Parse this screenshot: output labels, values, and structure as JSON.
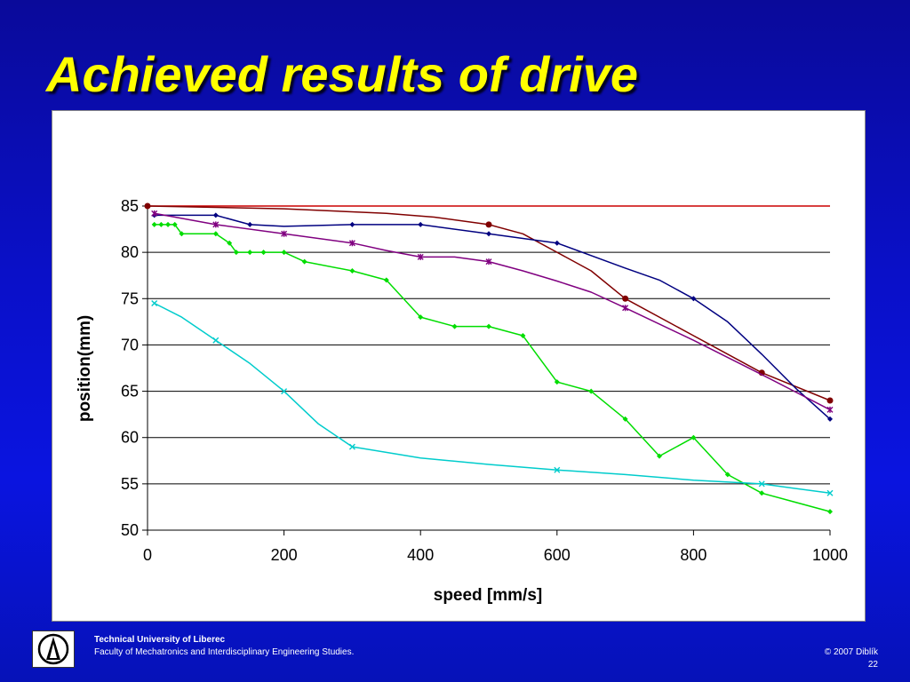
{
  "slide": {
    "title": "Achieved results of drive"
  },
  "footer": {
    "university": "Technical University of Liberec",
    "faculty": "Faculty of Mechatronics and Interdisciplinary Engineering Studies.",
    "copyright": "© 2007 Diblík",
    "page_number": "22",
    "logo_icon": "university-logo-icon"
  },
  "chart_data": {
    "type": "line",
    "title": "",
    "xlabel": "speed [mm/s]",
    "ylabel": "position(mm)",
    "xlim": [
      0,
      1000
    ],
    "ylim": [
      50,
      85
    ],
    "x_ticks": [
      0,
      200,
      400,
      600,
      800,
      1000
    ],
    "y_ticks": [
      50,
      55,
      60,
      65,
      70,
      75,
      80,
      85
    ],
    "grid": "horizontal",
    "legend": "none",
    "series": [
      {
        "color": "#cc0000",
        "marker": "none",
        "points": [
          [
            0,
            85
          ],
          [
            1000,
            85
          ]
        ]
      },
      {
        "color": "#800000",
        "marker": "circle",
        "points": [
          [
            0,
            85
          ],
          [
            200,
            84.7
          ],
          [
            350,
            84.2
          ],
          [
            420,
            83.8
          ],
          [
            500,
            83
          ],
          [
            550,
            82
          ],
          [
            600,
            80
          ],
          [
            650,
            78
          ],
          [
            700,
            75
          ],
          [
            800,
            71
          ],
          [
            900,
            67
          ],
          [
            1000,
            64
          ]
        ],
        "marker_x": [
          0,
          500,
          700,
          900,
          1000
        ]
      },
      {
        "color": "#000080",
        "marker": "diamond",
        "points": [
          [
            10,
            84
          ],
          [
            50,
            84
          ],
          [
            100,
            84
          ],
          [
            150,
            83
          ],
          [
            200,
            82.8
          ],
          [
            300,
            83
          ],
          [
            350,
            83
          ],
          [
            400,
            83
          ],
          [
            500,
            82
          ],
          [
            600,
            81
          ],
          [
            700,
            78.3
          ],
          [
            750,
            77
          ],
          [
            800,
            75
          ],
          [
            850,
            72.5
          ],
          [
            900,
            69
          ],
          [
            950,
            65.3
          ],
          [
            1000,
            62
          ]
        ],
        "marker_x": [
          10,
          100,
          150,
          300,
          400,
          500,
          600,
          800,
          1000
        ]
      },
      {
        "color": "#800080",
        "marker": "asterisk",
        "points": [
          [
            10,
            84.2
          ],
          [
            100,
            83
          ],
          [
            200,
            82
          ],
          [
            300,
            81
          ],
          [
            350,
            80.2
          ],
          [
            400,
            79.5
          ],
          [
            450,
            79.5
          ],
          [
            500,
            79
          ],
          [
            550,
            78
          ],
          [
            600,
            76.9
          ],
          [
            650,
            75.7
          ],
          [
            700,
            74
          ],
          [
            800,
            70.5
          ],
          [
            900,
            66.8
          ],
          [
            1000,
            63
          ]
        ],
        "marker_x": [
          10,
          100,
          200,
          300,
          400,
          500,
          700,
          1000
        ]
      },
      {
        "color": "#00dd00",
        "marker": "diamond",
        "points": [
          [
            10,
            83
          ],
          [
            20,
            83
          ],
          [
            30,
            83
          ],
          [
            40,
            83
          ],
          [
            50,
            82
          ],
          [
            100,
            82
          ],
          [
            120,
            81
          ],
          [
            130,
            80
          ],
          [
            150,
            80
          ],
          [
            170,
            80
          ],
          [
            200,
            80
          ],
          [
            230,
            79
          ],
          [
            300,
            78
          ],
          [
            350,
            77
          ],
          [
            400,
            73
          ],
          [
            450,
            72
          ],
          [
            500,
            72
          ],
          [
            550,
            71
          ],
          [
            600,
            66
          ],
          [
            650,
            65
          ],
          [
            700,
            62
          ],
          [
            750,
            58
          ],
          [
            800,
            60
          ],
          [
            850,
            56
          ],
          [
            900,
            54
          ],
          [
            1000,
            52
          ]
        ],
        "marker_x": [
          10,
          20,
          30,
          40,
          50,
          100,
          120,
          130,
          150,
          170,
          200,
          230,
          300,
          350,
          400,
          450,
          500,
          550,
          600,
          650,
          700,
          750,
          800,
          850,
          900,
          1000
        ]
      },
      {
        "color": "#00cccc",
        "marker": "cross",
        "points": [
          [
            10,
            74.5
          ],
          [
            50,
            73
          ],
          [
            100,
            70.5
          ],
          [
            150,
            68
          ],
          [
            200,
            65
          ],
          [
            250,
            61.5
          ],
          [
            300,
            59
          ],
          [
            400,
            57.8
          ],
          [
            500,
            57.1
          ],
          [
            600,
            56.5
          ],
          [
            700,
            56
          ],
          [
            800,
            55.4
          ],
          [
            900,
            55
          ],
          [
            1000,
            54
          ]
        ],
        "marker_x": [
          10,
          100,
          200,
          300,
          600,
          900,
          1000
        ]
      }
    ]
  }
}
